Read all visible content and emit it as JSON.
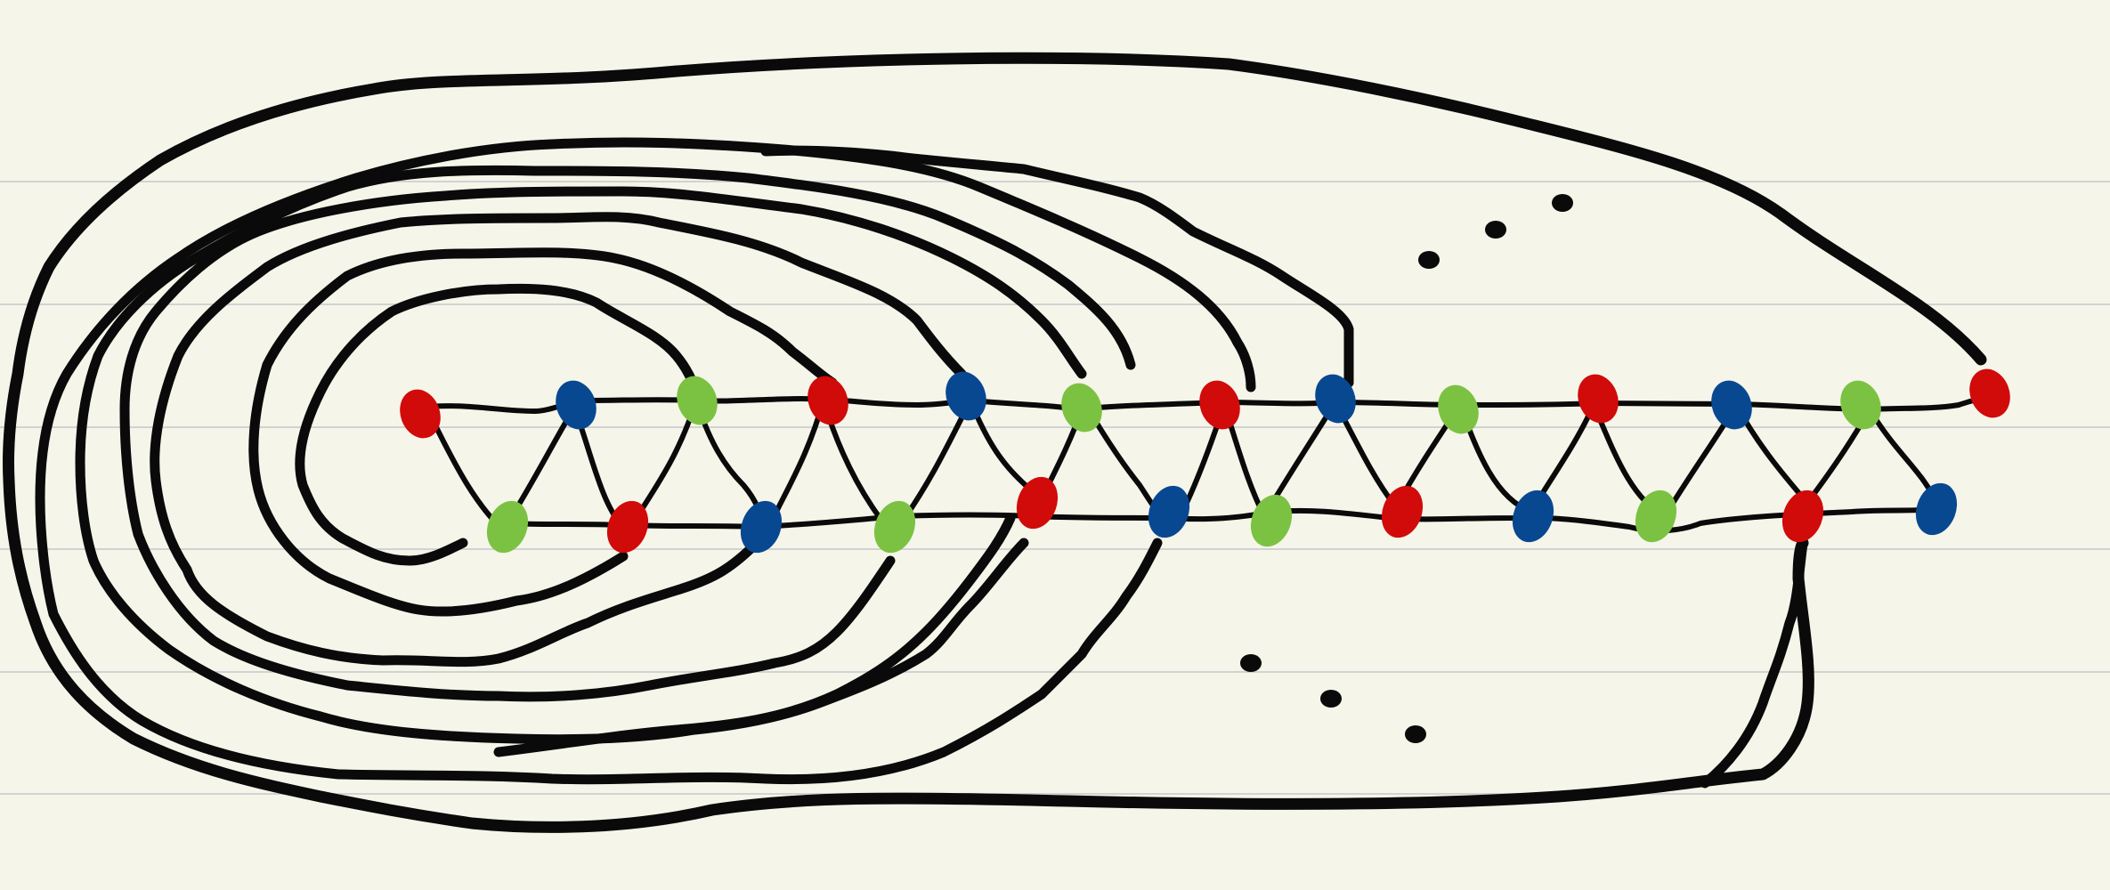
{
  "diagram": {
    "paper_color": "#f6f5ea",
    "ruled_line_color": "#d2d2d2",
    "ink_color": "#0a0a0a",
    "vertex_colors": {
      "red": "#d10a0a",
      "blue": "#084891",
      "green": "#7cc242"
    },
    "ruled_lines": 6,
    "top_row_vertices": [
      "red",
      "blue",
      "green",
      "red",
      "blue",
      "green",
      "red",
      "blue",
      "green",
      "red",
      "blue",
      "green",
      "red",
      "blue",
      "green"
    ],
    "bottom_row_vertices": [
      "green",
      "red",
      "blue",
      "green",
      "red",
      "blue",
      "green",
      "red",
      "blue",
      "green",
      "red",
      "blue"
    ],
    "nested_arc_count": 8,
    "ellipsis_upper_dots": 3,
    "ellipsis_lower_dots": 3
  }
}
